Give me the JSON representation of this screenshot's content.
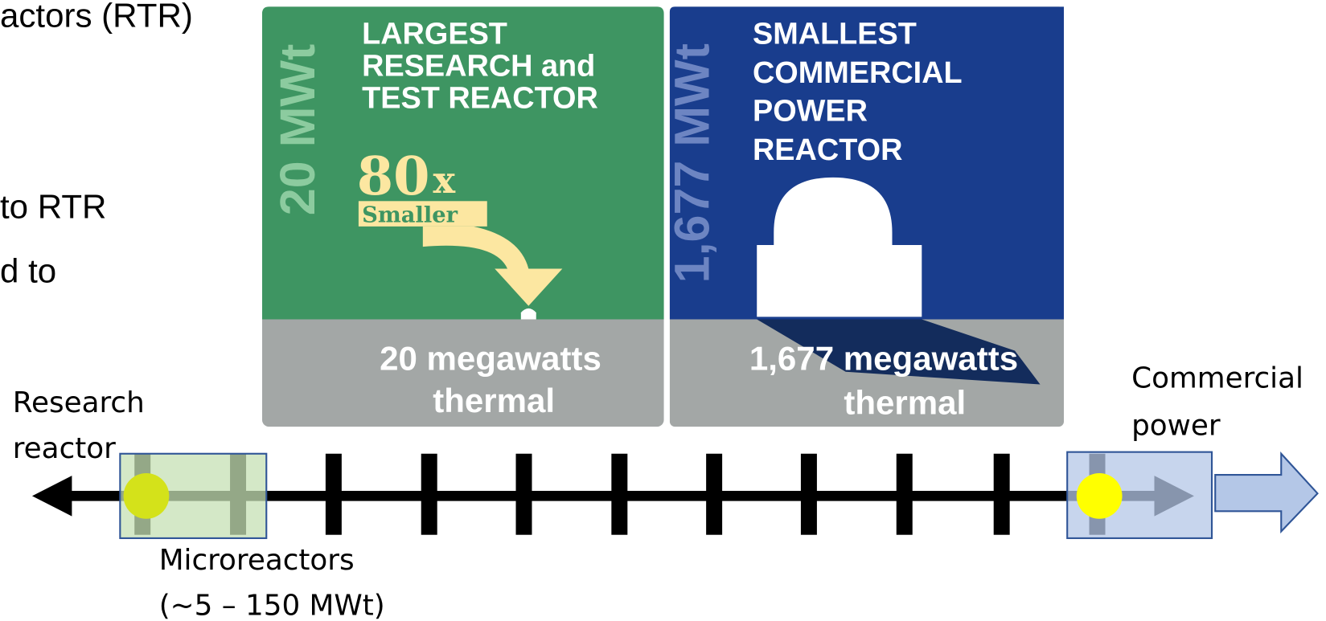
{
  "slide_text": {
    "lines": [
      "actors (RTR)",
      "to RTR",
      "d to"
    ]
  },
  "green_panel": {
    "side_label": "20 MWt",
    "title_lines": [
      "LARGEST",
      "RESEARCH and",
      "TEST REACTOR"
    ],
    "ratio": "80",
    "ratio_suffix": "x",
    "ratio_caption": "Smaller",
    "bottom_lines": [
      "20 megawatts",
      "thermal"
    ]
  },
  "blue_panel": {
    "side_label": "1,677 MWt",
    "title_lines": [
      "SMALLEST",
      "COMMERCIAL",
      "POWER",
      "REACTOR"
    ],
    "bottom_lines": [
      "1,677 megawatts",
      "thermal"
    ]
  },
  "timeline": {
    "left_label": [
      "Research",
      "reactor"
    ],
    "right_label": [
      "Commercial",
      "power"
    ],
    "micro_label": [
      "Microreactors",
      "(~5 – 150 MWt)"
    ]
  }
}
